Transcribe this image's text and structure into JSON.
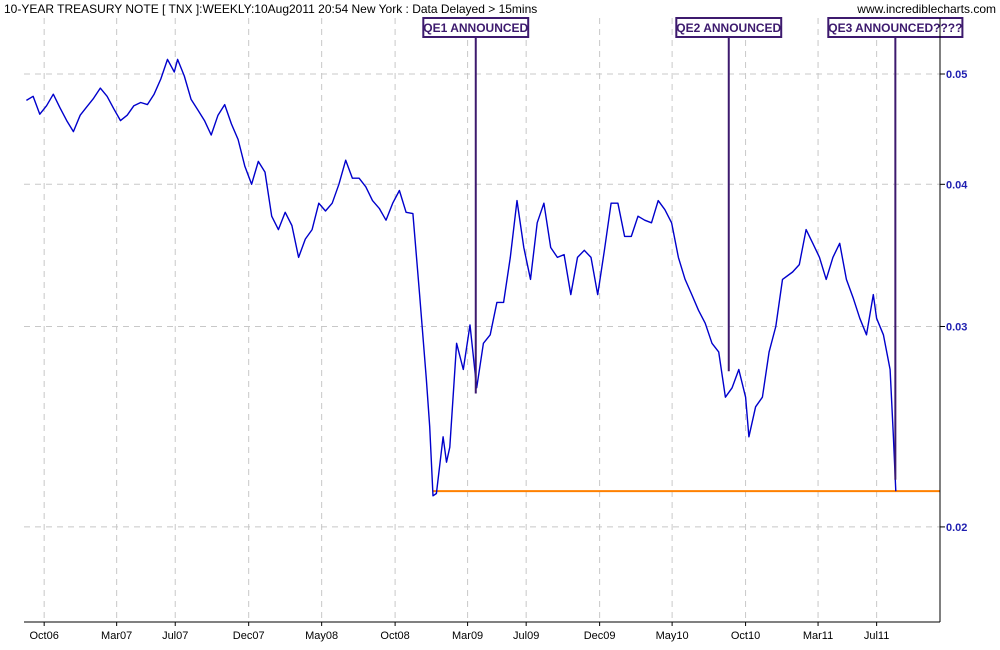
{
  "header": {
    "title": "10-YEAR TREASURY NOTE [ TNX ]:WEEKLY:10Aug2011 20:54 New York  : Data Delayed > 15mins",
    "watermark": "www.incrediblecharts.com"
  },
  "colors": {
    "price_line": "#0000cc",
    "support_line": "#ff8000",
    "annotation": "#3d1a6e",
    "grid": "#c8c8c8",
    "axis_label": "#1f1fb0"
  },
  "chart_data": {
    "type": "line",
    "title": "10-YEAR TREASURY NOTE [ TNX ]:WEEKLY:10Aug2011 20:54 New York  : Data Delayed > 15mins",
    "xlabel": "",
    "ylabel": "",
    "y_scale": "log",
    "ylim": [
      0.0165,
      0.056
    ],
    "xlim": [
      "2006-08-20",
      "2011-11-10"
    ],
    "grid": true,
    "y_ticks": [
      {
        "value": 0.05,
        "label": "0.05"
      },
      {
        "value": 0.04,
        "label": "0.04"
      },
      {
        "value": 0.03,
        "label": "0.03"
      },
      {
        "value": 0.02,
        "label": "0.02"
      }
    ],
    "x_ticks": [
      {
        "date": "2006-10-01",
        "label": "Oct06"
      },
      {
        "date": "2007-03-01",
        "label": "Mar07"
      },
      {
        "date": "2007-07-01",
        "label": "Jul07"
      },
      {
        "date": "2007-12-01",
        "label": "Dec07"
      },
      {
        "date": "2008-05-01",
        "label": "May08"
      },
      {
        "date": "2008-10-01",
        "label": "Oct08"
      },
      {
        "date": "2009-03-01",
        "label": "Mar09"
      },
      {
        "date": "2009-07-01",
        "label": "Jul09"
      },
      {
        "date": "2009-12-01",
        "label": "Dec09"
      },
      {
        "date": "2010-05-01",
        "label": "May10"
      },
      {
        "date": "2010-10-01",
        "label": "Oct10"
      },
      {
        "date": "2011-03-01",
        "label": "Mar11"
      },
      {
        "date": "2011-07-01",
        "label": "Jul11"
      }
    ],
    "series": [
      {
        "points": [
          [
            "2006-08-25",
            0.0474
          ],
          [
            "2006-09-08",
            0.0478
          ],
          [
            "2006-09-22",
            0.0461
          ],
          [
            "2006-10-06",
            0.0469
          ],
          [
            "2006-10-20",
            0.048
          ],
          [
            "2006-11-03",
            0.0467
          ],
          [
            "2006-11-17",
            0.0455
          ],
          [
            "2006-12-01",
            0.0445
          ],
          [
            "2006-12-15",
            0.046
          ],
          [
            "2006-12-29",
            0.0468
          ],
          [
            "2007-01-12",
            0.0476
          ],
          [
            "2007-01-26",
            0.0486
          ],
          [
            "2007-02-09",
            0.0478
          ],
          [
            "2007-02-23",
            0.0466
          ],
          [
            "2007-03-09",
            0.0455
          ],
          [
            "2007-03-23",
            0.046
          ],
          [
            "2007-04-06",
            0.0469
          ],
          [
            "2007-04-20",
            0.0472
          ],
          [
            "2007-05-04",
            0.047
          ],
          [
            "2007-05-18",
            0.048
          ],
          [
            "2007-06-01",
            0.0495
          ],
          [
            "2007-06-15",
            0.0515
          ],
          [
            "2007-06-29",
            0.0502
          ],
          [
            "2007-07-06",
            0.0515
          ],
          [
            "2007-07-20",
            0.0498
          ],
          [
            "2007-08-03",
            0.0475
          ],
          [
            "2007-08-17",
            0.0465
          ],
          [
            "2007-08-31",
            0.0455
          ],
          [
            "2007-09-14",
            0.0442
          ],
          [
            "2007-09-28",
            0.046
          ],
          [
            "2007-10-12",
            0.047
          ],
          [
            "2007-10-26",
            0.0452
          ],
          [
            "2007-11-09",
            0.0438
          ],
          [
            "2007-11-23",
            0.0415
          ],
          [
            "2007-12-07",
            0.04
          ],
          [
            "2007-12-21",
            0.0419
          ],
          [
            "2008-01-04",
            0.041
          ],
          [
            "2008-01-18",
            0.0375
          ],
          [
            "2008-02-01",
            0.0365
          ],
          [
            "2008-02-15",
            0.0378
          ],
          [
            "2008-02-29",
            0.0368
          ],
          [
            "2008-03-14",
            0.0345
          ],
          [
            "2008-03-28",
            0.0358
          ],
          [
            "2008-04-11",
            0.0365
          ],
          [
            "2008-04-25",
            0.0385
          ],
          [
            "2008-05-09",
            0.0379
          ],
          [
            "2008-05-23",
            0.0385
          ],
          [
            "2008-06-06",
            0.04
          ],
          [
            "2008-06-20",
            0.042
          ],
          [
            "2008-07-04",
            0.0405
          ],
          [
            "2008-07-18",
            0.0405
          ],
          [
            "2008-08-01",
            0.0398
          ],
          [
            "2008-08-15",
            0.0387
          ],
          [
            "2008-08-29",
            0.0381
          ],
          [
            "2008-09-12",
            0.0372
          ],
          [
            "2008-09-26",
            0.0385
          ],
          [
            "2008-10-10",
            0.0395
          ],
          [
            "2008-10-24",
            0.0378
          ],
          [
            "2008-11-07",
            0.0377
          ],
          [
            "2008-11-21",
            0.032
          ],
          [
            "2008-12-05",
            0.027
          ],
          [
            "2008-12-12",
            0.0245
          ],
          [
            "2008-12-19",
            0.0213
          ],
          [
            "2008-12-26",
            0.0214
          ],
          [
            "2009-01-09",
            0.024
          ],
          [
            "2009-01-16",
            0.0228
          ],
          [
            "2009-01-23",
            0.0235
          ],
          [
            "2009-02-06",
            0.029
          ],
          [
            "2009-02-20",
            0.0275
          ],
          [
            "2009-03-06",
            0.0301
          ],
          [
            "2009-03-20",
            0.0265
          ],
          [
            "2009-04-03",
            0.029
          ],
          [
            "2009-04-17",
            0.0295
          ],
          [
            "2009-05-01",
            0.0315
          ],
          [
            "2009-05-15",
            0.0315
          ],
          [
            "2009-05-29",
            0.0345
          ],
          [
            "2009-06-12",
            0.0387
          ],
          [
            "2009-06-26",
            0.0352
          ],
          [
            "2009-07-10",
            0.033
          ],
          [
            "2009-07-24",
            0.037
          ],
          [
            "2009-08-07",
            0.0385
          ],
          [
            "2009-08-21",
            0.0352
          ],
          [
            "2009-09-04",
            0.0345
          ],
          [
            "2009-09-18",
            0.0347
          ],
          [
            "2009-10-02",
            0.032
          ],
          [
            "2009-10-16",
            0.0345
          ],
          [
            "2009-10-30",
            0.035
          ],
          [
            "2009-11-13",
            0.0345
          ],
          [
            "2009-11-27",
            0.032
          ],
          [
            "2009-12-11",
            0.035
          ],
          [
            "2009-12-25",
            0.0385
          ],
          [
            "2010-01-08",
            0.0385
          ],
          [
            "2010-01-22",
            0.036
          ],
          [
            "2010-02-05",
            0.036
          ],
          [
            "2010-02-19",
            0.0375
          ],
          [
            "2010-03-05",
            0.0372
          ],
          [
            "2010-03-19",
            0.037
          ],
          [
            "2010-04-02",
            0.0387
          ],
          [
            "2010-04-16",
            0.038
          ],
          [
            "2010-04-30",
            0.037
          ],
          [
            "2010-05-14",
            0.0345
          ],
          [
            "2010-05-28",
            0.033
          ],
          [
            "2010-06-11",
            0.032
          ],
          [
            "2010-06-25",
            0.031
          ],
          [
            "2010-07-09",
            0.0302
          ],
          [
            "2010-07-23",
            0.029
          ],
          [
            "2010-08-06",
            0.0285
          ],
          [
            "2010-08-20",
            0.026
          ],
          [
            "2010-09-03",
            0.0265
          ],
          [
            "2010-09-17",
            0.0275
          ],
          [
            "2010-10-01",
            0.026
          ],
          [
            "2010-10-08",
            0.024
          ],
          [
            "2010-10-22",
            0.0255
          ],
          [
            "2010-11-05",
            0.026
          ],
          [
            "2010-11-19",
            0.0285
          ],
          [
            "2010-12-03",
            0.03
          ],
          [
            "2010-12-17",
            0.033
          ],
          [
            "2011-01-07",
            0.0335
          ],
          [
            "2011-01-21",
            0.034
          ],
          [
            "2011-02-04",
            0.0365
          ],
          [
            "2011-02-18",
            0.0355
          ],
          [
            "2011-03-04",
            0.0345
          ],
          [
            "2011-03-18",
            0.033
          ],
          [
            "2011-04-01",
            0.0345
          ],
          [
            "2011-04-15",
            0.0355
          ],
          [
            "2011-04-29",
            0.033
          ],
          [
            "2011-05-13",
            0.0318
          ],
          [
            "2011-05-27",
            0.0305
          ],
          [
            "2011-06-10",
            0.0295
          ],
          [
            "2011-06-24",
            0.032
          ],
          [
            "2011-07-01",
            0.0305
          ],
          [
            "2011-07-15",
            0.0295
          ],
          [
            "2011-07-29",
            0.0275
          ],
          [
            "2011-08-05",
            0.024
          ],
          [
            "2011-08-10",
            0.0215
          ]
        ]
      }
    ],
    "horizontal_line": {
      "value": 0.0215,
      "from": "2008-12-19",
      "to": "2011-11-10"
    },
    "annotations": [
      {
        "label": "QE1 ANNOUNCED",
        "date": "2009-03-18",
        "end_value": 0.0262
      },
      {
        "label": "QE2 ANNOUNCED",
        "date": "2010-08-27",
        "end_value": 0.0274
      },
      {
        "label": "QE3 ANNOUNCED????",
        "date": "2011-08-09",
        "end_value": 0.022
      }
    ]
  }
}
